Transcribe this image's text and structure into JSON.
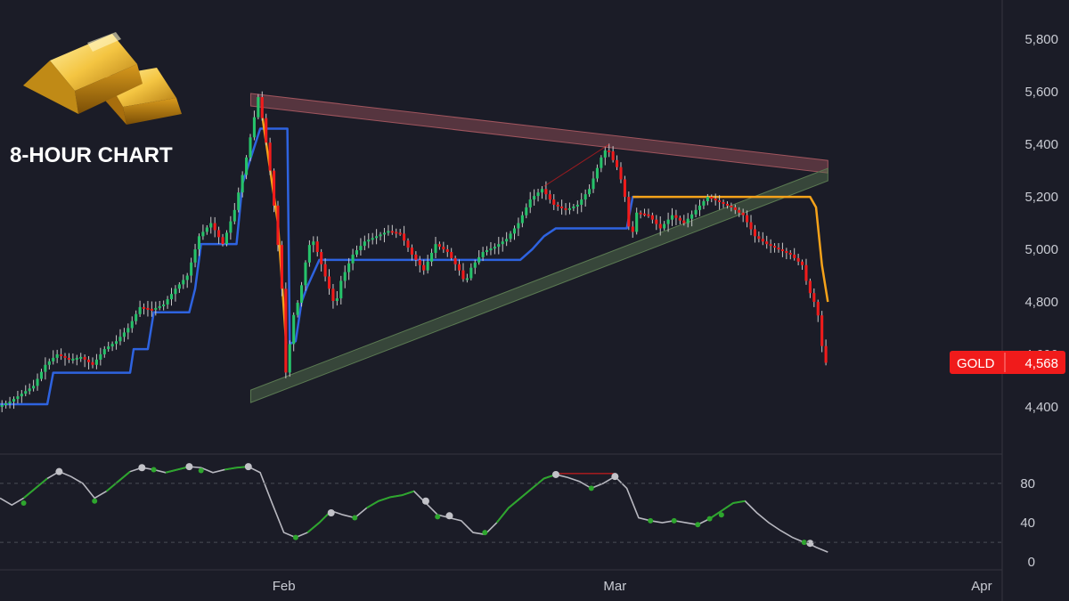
{
  "header": {
    "title": "8-HOUR CHART"
  },
  "colors": {
    "background": "#1b1c27",
    "up": "#26c26a",
    "down": "#f01b1b",
    "support_line": "#2e63e0",
    "resistance_line": "#f5a21a",
    "upper_trendline": "#a0555e",
    "lower_trendline": "#5b7a52",
    "oscillator_line": "#b8b8c0",
    "oscillator_up": "#2ea62e",
    "price_tag": "#f01b1b"
  },
  "icons": {
    "logo": "gold-bars-icon"
  },
  "price_tag": {
    "symbol": "GOLD",
    "price": "4,568"
  },
  "chart_data": [
    {
      "type": "candlestick",
      "title": "8-HOUR CHART",
      "y_ticks": [
        "5,800",
        "5,600",
        "5,400",
        "5,200",
        "5,000",
        "4,800",
        "4,600",
        "4,400"
      ],
      "ylim": [
        4220,
        5950
      ],
      "x_ticks": [
        {
          "label": "Feb",
          "day": 31
        },
        {
          "label": "Mar",
          "day": 59
        },
        {
          "label": "Apr",
          "day": 90
        }
      ],
      "xlim": [
        7,
        94
      ],
      "grid": false,
      "anchors": [
        [
          7,
          4400
        ],
        [
          8,
          4420
        ],
        [
          9,
          4450
        ],
        [
          10,
          4480
        ],
        [
          11,
          4560
        ],
        [
          12,
          4600
        ],
        [
          13,
          4580
        ],
        [
          14,
          4590
        ],
        [
          15,
          4560
        ],
        [
          16,
          4620
        ],
        [
          17,
          4650
        ],
        [
          18,
          4700
        ],
        [
          19,
          4780
        ],
        [
          20,
          4770
        ],
        [
          21,
          4790
        ],
        [
          22,
          4850
        ],
        [
          23,
          4900
        ],
        [
          24,
          5050
        ],
        [
          25,
          5100
        ],
        [
          26,
          5020
        ],
        [
          27,
          5150
        ],
        [
          28,
          5350
        ],
        [
          29,
          5580
        ],
        [
          29.5,
          5460
        ],
        [
          30,
          5300
        ],
        [
          30.5,
          5100
        ],
        [
          31,
          4850
        ],
        [
          31.3,
          4520
        ],
        [
          31.7,
          4650
        ],
        [
          32,
          4750
        ],
        [
          32.5,
          4820
        ],
        [
          33,
          4950
        ],
        [
          33.5,
          5050
        ],
        [
          34,
          4990
        ],
        [
          35,
          4850
        ],
        [
          35.5,
          4780
        ],
        [
          36,
          4880
        ],
        [
          37,
          4980
        ],
        [
          38,
          5030
        ],
        [
          39,
          5050
        ],
        [
          40,
          5070
        ],
        [
          41,
          5060
        ],
        [
          42,
          4980
        ],
        [
          43,
          4920
        ],
        [
          44,
          5020
        ],
        [
          45,
          4990
        ],
        [
          46,
          4920
        ],
        [
          46.5,
          4870
        ],
        [
          47,
          4930
        ],
        [
          48,
          4990
        ],
        [
          49,
          5010
        ],
        [
          50,
          5040
        ],
        [
          51,
          5100
        ],
        [
          52,
          5190
        ],
        [
          53,
          5230
        ],
        [
          54,
          5170
        ],
        [
          55,
          5150
        ],
        [
          56,
          5170
        ],
        [
          57,
          5230
        ],
        [
          58,
          5350
        ],
        [
          58.5,
          5390
        ],
        [
          59,
          5340
        ],
        [
          59.5,
          5300
        ],
        [
          60,
          5200
        ],
        [
          60.5,
          5030
        ],
        [
          61,
          5140
        ],
        [
          62,
          5130
        ],
        [
          63,
          5080
        ],
        [
          64,
          5130
        ],
        [
          65,
          5100
        ],
        [
          66,
          5150
        ],
        [
          67,
          5200
        ],
        [
          68,
          5180
        ],
        [
          69,
          5160
        ],
        [
          70,
          5130
        ],
        [
          71,
          5050
        ],
        [
          72,
          5020
        ],
        [
          73,
          5000
        ],
        [
          74,
          4980
        ],
        [
          75,
          4940
        ],
        [
          75.5,
          4850
        ],
        [
          76,
          4800
        ],
        [
          76.3,
          4760
        ],
        [
          76.7,
          4620
        ],
        [
          77,
          4568
        ]
      ],
      "trendlines": [
        {
          "role": "upper",
          "from": [
            28.2,
            5570
          ],
          "to": [
            77,
            5315
          ]
        },
        {
          "role": "lower",
          "from": [
            28.2,
            4440
          ],
          "to": [
            77,
            5285
          ]
        }
      ],
      "support_line": [
        [
          7,
          4410
        ],
        [
          11,
          4410
        ],
        [
          11.5,
          4530
        ],
        [
          18,
          4530
        ],
        [
          18.3,
          4620
        ],
        [
          19.5,
          4620
        ],
        [
          20,
          4760
        ],
        [
          23,
          4760
        ],
        [
          23.5,
          4850
        ],
        [
          24,
          5020
        ],
        [
          27,
          5020
        ],
        [
          27.5,
          5250
        ],
        [
          29,
          5460
        ],
        [
          31.3,
          5460
        ],
        [
          31.5,
          4640
        ],
        [
          32,
          4650
        ],
        [
          32.5,
          4800
        ],
        [
          33,
          4860
        ],
        [
          34,
          4960
        ],
        [
          51,
          4960
        ],
        [
          52,
          5000
        ],
        [
          53,
          5050
        ],
        [
          54,
          5080
        ],
        [
          60,
          5080
        ],
        [
          60.5,
          5200
        ],
        [
          61,
          5200
        ]
      ],
      "resistance_line": [
        [
          29.2,
          5500
        ],
        [
          30.5,
          5100
        ],
        [
          31.2,
          4640
        ]
      ],
      "resistance_line_2": [
        [
          60.5,
          5200
        ],
        [
          75.5,
          5200
        ],
        [
          76,
          5160
        ],
        [
          76.5,
          4940
        ],
        [
          77,
          4800
        ]
      ]
    },
    {
      "type": "line",
      "name": "oscillator",
      "y_ticks": [
        "80",
        "40",
        "0"
      ],
      "ylim": [
        -8,
        108
      ],
      "dashed_levels": [
        80,
        20
      ],
      "values": [
        [
          7,
          65
        ],
        [
          8,
          58
        ],
        [
          9,
          65
        ],
        [
          10,
          75
        ],
        [
          11,
          85
        ],
        [
          12,
          92
        ],
        [
          13,
          87
        ],
        [
          14,
          80
        ],
        [
          15,
          65
        ],
        [
          16,
          72
        ],
        [
          17,
          82
        ],
        [
          18,
          92
        ],
        [
          19,
          96
        ],
        [
          20,
          94
        ],
        [
          21,
          91
        ],
        [
          22,
          94
        ],
        [
          23,
          97
        ],
        [
          24,
          96
        ],
        [
          25,
          91
        ],
        [
          26,
          94
        ],
        [
          27,
          96
        ],
        [
          28,
          97
        ],
        [
          29,
          91
        ],
        [
          30,
          60
        ],
        [
          31,
          30
        ],
        [
          32,
          25
        ],
        [
          33,
          30
        ],
        [
          34,
          40
        ],
        [
          35,
          52
        ],
        [
          36,
          48
        ],
        [
          37,
          45
        ],
        [
          38,
          55
        ],
        [
          39,
          62
        ],
        [
          40,
          66
        ],
        [
          41,
          68
        ],
        [
          42,
          72
        ],
        [
          43,
          60
        ],
        [
          44,
          48
        ],
        [
          45,
          45
        ],
        [
          46,
          42
        ],
        [
          47,
          30
        ],
        [
          48,
          28
        ],
        [
          49,
          40
        ],
        [
          50,
          55
        ],
        [
          51,
          65
        ],
        [
          52,
          75
        ],
        [
          53,
          85
        ],
        [
          54,
          89
        ],
        [
          55,
          86
        ],
        [
          56,
          82
        ],
        [
          57,
          75
        ],
        [
          58,
          80
        ],
        [
          59,
          87
        ],
        [
          60,
          75
        ],
        [
          61,
          45
        ],
        [
          62,
          42
        ],
        [
          63,
          40
        ],
        [
          64,
          42
        ],
        [
          65,
          40
        ],
        [
          66,
          38
        ],
        [
          67,
          44
        ],
        [
          68,
          52
        ],
        [
          69,
          60
        ],
        [
          70,
          62
        ],
        [
          71,
          50
        ],
        [
          72,
          40
        ],
        [
          73,
          32
        ],
        [
          74,
          25
        ],
        [
          75,
          20
        ],
        [
          75.5,
          18
        ],
        [
          76,
          15
        ],
        [
          77,
          10
        ]
      ],
      "up_segments": [
        [
          9,
          11
        ],
        [
          16,
          18
        ],
        [
          21,
          23
        ],
        [
          26,
          28
        ],
        [
          33,
          35
        ],
        [
          38,
          42
        ],
        [
          49,
          54
        ],
        [
          67,
          70
        ]
      ],
      "signal_points": [
        {
          "day": 9,
          "value": 60,
          "kind": "buy"
        },
        {
          "day": 12,
          "value": 92,
          "kind": "sell"
        },
        {
          "day": 15,
          "value": 62,
          "kind": "buy"
        },
        {
          "day": 19,
          "value": 96,
          "kind": "sell"
        },
        {
          "day": 20,
          "value": 94,
          "kind": "buy"
        },
        {
          "day": 23,
          "value": 97,
          "kind": "sell"
        },
        {
          "day": 24,
          "value": 93,
          "kind": "buy"
        },
        {
          "day": 28,
          "value": 97,
          "kind": "sell"
        },
        {
          "day": 32,
          "value": 25,
          "kind": "buy"
        },
        {
          "day": 35,
          "value": 50,
          "kind": "sell"
        },
        {
          "day": 37,
          "value": 45,
          "kind": "buy"
        },
        {
          "day": 43,
          "value": 62,
          "kind": "sell"
        },
        {
          "day": 44,
          "value": 46,
          "kind": "buy"
        },
        {
          "day": 45,
          "value": 47,
          "kind": "sell"
        },
        {
          "day": 48,
          "value": 30,
          "kind": "buy"
        },
        {
          "day": 54,
          "value": 89,
          "kind": "sell"
        },
        {
          "day": 57,
          "value": 75,
          "kind": "buy"
        },
        {
          "day": 59,
          "value": 87,
          "kind": "sell"
        },
        {
          "day": 62,
          "value": 42,
          "kind": "buy"
        },
        {
          "day": 64,
          "value": 42,
          "kind": "buy"
        },
        {
          "day": 66,
          "value": 38,
          "kind": "buy"
        },
        {
          "day": 67,
          "value": 44,
          "kind": "buy"
        },
        {
          "day": 68,
          "value": 48,
          "kind": "buy"
        },
        {
          "day": 75,
          "value": 20,
          "kind": "buy"
        },
        {
          "day": 75.5,
          "value": 19,
          "kind": "sell"
        }
      ],
      "divergence": {
        "from": [
          54,
          90
        ],
        "to": [
          59,
          90
        ]
      }
    }
  ]
}
